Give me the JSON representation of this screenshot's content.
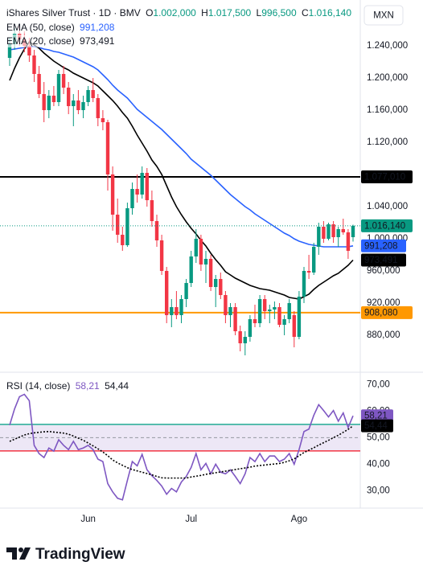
{
  "chart_data": [
    {
      "type": "candlestick",
      "title": "iShares Silver Trust · 1D · BMV",
      "currency": "MXN",
      "ohlc_legend": [
        {
          "key": "O",
          "value": "1.002,000"
        },
        {
          "key": "H",
          "value": "1.017,500"
        },
        {
          "key": "L",
          "value": "996,500"
        },
        {
          "key": "C",
          "value": "1.016,140"
        }
      ],
      "categories": [
        null,
        null,
        null,
        null,
        null,
        null,
        null,
        null,
        null,
        null,
        null,
        null,
        null,
        null,
        null,
        null,
        "Jun",
        null,
        null,
        null,
        null,
        null,
        null,
        null,
        null,
        null,
        null,
        null,
        null,
        null,
        null,
        null,
        null,
        null,
        null,
        null,
        null,
        "Jul",
        null,
        null,
        null,
        null,
        null,
        null,
        null,
        null,
        null,
        null,
        null,
        null,
        null,
        null,
        null,
        null,
        null,
        null,
        null,
        null,
        null,
        "Ago",
        null,
        null,
        null,
        null,
        null,
        null,
        null,
        null,
        null,
        null,
        null
      ],
      "open": [
        1225,
        1242,
        1255,
        1248,
        1240,
        1228,
        1205,
        1180,
        1160,
        1178,
        1170,
        1205,
        1188,
        1165,
        1172,
        1160,
        1170,
        1185,
        1175,
        1150,
        1145,
        1080,
        1030,
        1005,
        992,
        1038,
        1062,
        1055,
        1082,
        1048,
        1022,
        998,
        960,
        905,
        915,
        905,
        925,
        945,
        978,
        1000,
        968,
        975,
        940,
        950,
        930,
        905,
        915,
        885,
        870,
        878,
        900,
        895,
        925,
        910,
        912,
        915,
        893,
        900,
        905,
        878,
        928,
        960,
        958,
        990,
        1015,
        1000,
        1018,
        1002,
        1012,
        1008,
        1002
      ],
      "high": [
        1250,
        1262,
        1265,
        1258,
        1250,
        1235,
        1215,
        1195,
        1185,
        1190,
        1210,
        1215,
        1195,
        1180,
        1185,
        1178,
        1190,
        1200,
        1180,
        1160,
        1148,
        1090,
        1050,
        1015,
        1045,
        1070,
        1080,
        1090,
        1088,
        1060,
        1030,
        1005,
        965,
        925,
        935,
        930,
        950,
        985,
        1012,
        1005,
        985,
        980,
        955,
        958,
        935,
        920,
        920,
        892,
        885,
        905,
        918,
        930,
        930,
        918,
        922,
        920,
        905,
        925,
        910,
        935,
        965,
        980,
        995,
        1020,
        1022,
        1020,
        1022,
        1015,
        1025,
        1012,
        1017.5
      ],
      "low": [
        1215,
        1235,
        1240,
        1232,
        1220,
        1195,
        1175,
        1145,
        1150,
        1165,
        1165,
        1180,
        1155,
        1140,
        1155,
        1150,
        1165,
        1170,
        1140,
        1135,
        1060,
        1010,
        995,
        985,
        990,
        1030,
        1045,
        1050,
        1040,
        1015,
        990,
        955,
        895,
        890,
        900,
        895,
        915,
        940,
        970,
        960,
        945,
        935,
        915,
        925,
        895,
        890,
        880,
        860,
        855,
        872,
        890,
        890,
        900,
        895,
        900,
        890,
        880,
        895,
        865,
        875,
        920,
        950,
        955,
        980,
        995,
        998,
        995,
        990,
        1005,
        975,
        996.5
      ],
      "close": [
        1242,
        1255,
        1248,
        1240,
        1228,
        1205,
        1180,
        1160,
        1178,
        1170,
        1205,
        1188,
        1165,
        1172,
        1160,
        1170,
        1185,
        1175,
        1150,
        1145,
        1080,
        1030,
        1005,
        992,
        1038,
        1062,
        1055,
        1082,
        1048,
        1022,
        998,
        960,
        905,
        915,
        905,
        925,
        945,
        978,
        1000,
        968,
        975,
        940,
        950,
        930,
        905,
        915,
        885,
        870,
        878,
        900,
        895,
        925,
        910,
        912,
        915,
        893,
        900,
        920,
        878,
        928,
        960,
        958,
        990,
        1015,
        1000,
        1018,
        1002,
        1012,
        1008,
        985,
        1016.14
      ],
      "up_color": "#089981",
      "down_color": "#f23645",
      "last_label": "1.016,140",
      "series": [
        {
          "name": "EMA (50, close)",
          "color": "#2962ff",
          "last_label": "991,208",
          "values": [
            1235,
            1236,
            1237,
            1238,
            1239,
            1239,
            1238,
            1236,
            1235,
            1233,
            1232,
            1230,
            1228,
            1226,
            1223,
            1220,
            1217,
            1214,
            1210,
            1204,
            1198,
            1191,
            1185,
            1180,
            1175,
            1168,
            1161,
            1156,
            1151,
            1146,
            1141,
            1136,
            1130,
            1124,
            1118,
            1112,
            1106,
            1099,
            1094,
            1089,
            1084,
            1079,
            1073,
            1067,
            1061,
            1055,
            1050,
            1045,
            1040,
            1036,
            1031,
            1027,
            1023,
            1019,
            1015,
            1011,
            1007,
            1004,
            1000,
            997,
            995,
            993,
            992,
            991,
            990,
            990,
            990,
            990,
            990,
            990,
            991.208
          ]
        },
        {
          "name": "EMA (20, close)",
          "color": "#000000",
          "last_label": "973,491",
          "values": [
            1197,
            1212,
            1225,
            1236,
            1245,
            1241,
            1237,
            1231,
            1226,
            1221,
            1217,
            1213,
            1210,
            1206,
            1203,
            1200,
            1197,
            1194,
            1190,
            1184,
            1178,
            1172,
            1165,
            1157,
            1150,
            1140,
            1129,
            1119,
            1109,
            1098,
            1090,
            1080,
            1066,
            1052,
            1040,
            1030,
            1021,
            1013,
            1006,
            998,
            991,
            982,
            974,
            967,
            959,
            955,
            951,
            948,
            945,
            942,
            940,
            938,
            937,
            936,
            934,
            932,
            930,
            927,
            926,
            925,
            928,
            931,
            937,
            942,
            946,
            950,
            954,
            957,
            962,
            967,
            973.491
          ]
        }
      ],
      "hlines": [
        {
          "value": 1077.01,
          "label": "1.077,010",
          "color": "#000000",
          "text_color": "#ffffff"
        },
        {
          "value": 908.08,
          "label": "908,080",
          "color": "#ff9800",
          "text_color": "#000000"
        }
      ],
      "ylim": [
        835,
        1297
      ],
      "yticks": [
        {
          "value": 880,
          "label": "880,000"
        },
        {
          "value": 920,
          "label": "920,000"
        },
        {
          "value": 960,
          "label": "960,000"
        },
        {
          "value": 1000,
          "label": "1.000,000"
        },
        {
          "value": 1040,
          "label": "1.040,000"
        },
        {
          "value": 1120,
          "label": "1.120,000"
        },
        {
          "value": 1160,
          "label": "1.160,000"
        },
        {
          "value": 1200,
          "label": "1.200,000"
        },
        {
          "value": 1240,
          "label": "1.240,000"
        }
      ]
    },
    {
      "type": "line",
      "series": [
        {
          "name": "RSI (14, close)",
          "color": "#7e57c2",
          "last_label": "58,21",
          "values": [
            54.7,
            60.8,
            65.4,
            66.3,
            63.9,
            47.1,
            44.0,
            42.5,
            46.1,
            44.9,
            49.2,
            47.1,
            45.5,
            48.6,
            45.5,
            46.1,
            47.1,
            45.5,
            41.9,
            41.0,
            32.7,
            29.6,
            27.2,
            26.6,
            33.9,
            41.0,
            39.4,
            43.7,
            37.9,
            35.7,
            33.9,
            31.8,
            28.7,
            30.9,
            29.6,
            33.3,
            35.4,
            38.8,
            44.0,
            37.9,
            40.3,
            36.4,
            40.0,
            37.0,
            36.4,
            37.9,
            35.4,
            32.7,
            36.4,
            42.5,
            41.0,
            44.0,
            41.0,
            43.1,
            43.1,
            41.0,
            41.9,
            44.0,
            40.0,
            45.5,
            52.3,
            53.2,
            58.4,
            62.4,
            60.2,
            57.8,
            60.2,
            56.2,
            59.3,
            53.8,
            58.21
          ]
        },
        {
          "color": "#000000",
          "style": "dotted",
          "last_label": "54,44",
          "values": [
            48.6,
            49.4,
            50.2,
            51.0,
            51.5,
            51.8,
            52.0,
            52.2,
            52.3,
            52.1,
            51.9,
            51.7,
            51.3,
            50.6,
            49.8,
            49.0,
            48.0,
            46.9,
            45.8,
            44.6,
            43.2,
            41.6,
            40.5,
            39.6,
            38.7,
            38.0,
            37.5,
            37.0,
            36.5,
            36.0,
            35.4,
            34.9,
            34.8,
            34.8,
            34.8,
            34.8,
            34.8,
            35.2,
            35.5,
            35.8,
            36.2,
            36.5,
            36.8,
            37.1,
            37.4,
            37.7,
            38.0,
            38.3,
            38.6,
            38.9,
            39.3,
            39.5,
            39.7,
            39.9,
            40.1,
            40.3,
            40.7,
            41.3,
            42.0,
            43.2,
            44.4,
            45.3,
            46.2,
            47.2,
            48.1,
            49.0,
            50.0,
            50.9,
            52.0,
            53.1,
            54.44
          ]
        }
      ],
      "bands": {
        "upper": 55,
        "middle": 50,
        "lower": 45,
        "upper_color": "#22ab94",
        "lower_color": "#f23645",
        "fill": "#ede7f6"
      },
      "ylim": [
        23.5,
        74.3
      ],
      "yticks": [
        {
          "value": 30,
          "label": "30,00"
        },
        {
          "value": 40,
          "label": "40,00"
        },
        {
          "value": 50,
          "label": "50,00"
        },
        {
          "value": 60,
          "label": "60,00"
        },
        {
          "value": 70,
          "label": "70,00"
        }
      ]
    }
  ],
  "footer": {
    "brand": "TradingView"
  }
}
